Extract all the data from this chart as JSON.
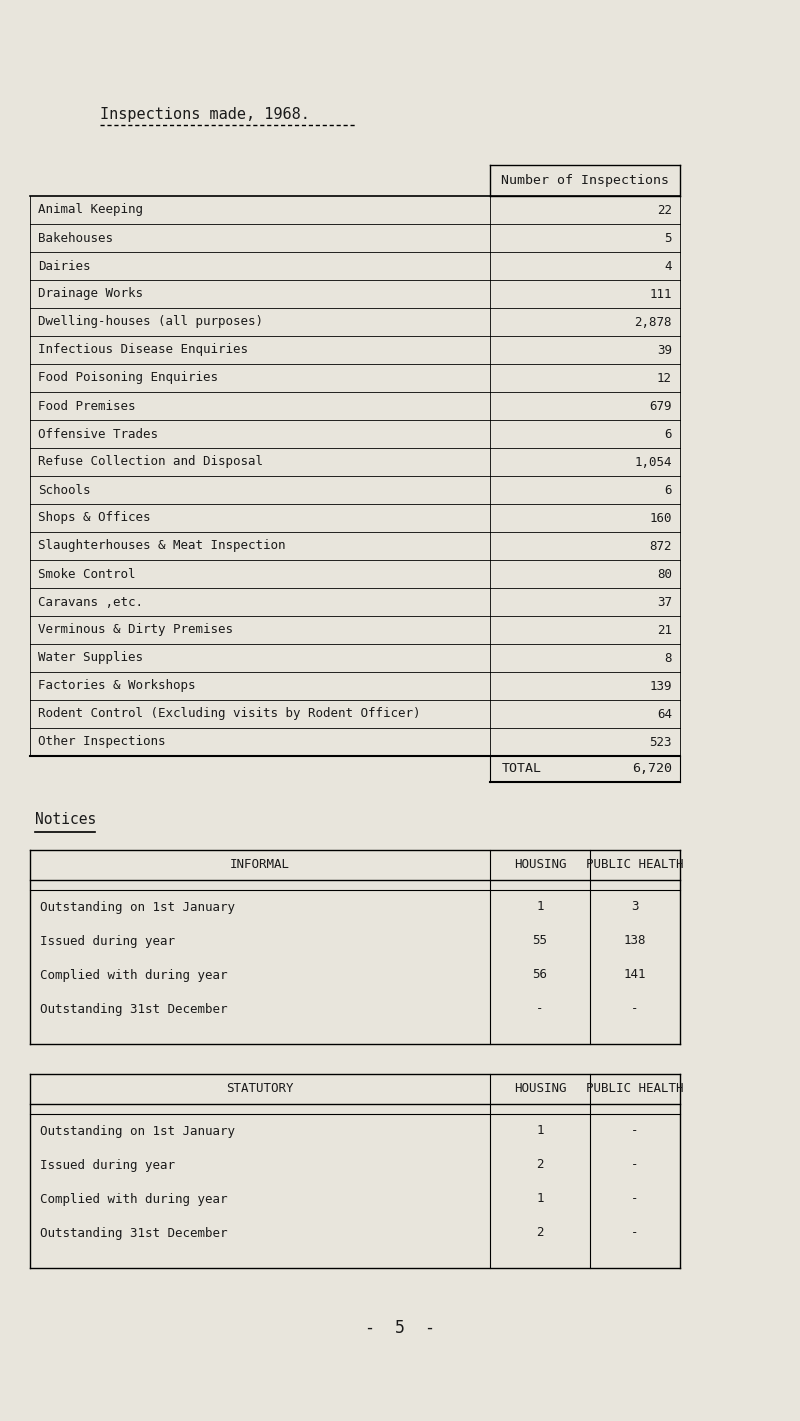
{
  "title": "Inspections made, 1968.",
  "bg_color": "#e8e5dc",
  "text_color": "#1a1a1a",
  "inspections": [
    [
      "Animal Keeping",
      "22"
    ],
    [
      "Bakehouses",
      "5"
    ],
    [
      "Dairies",
      "4"
    ],
    [
      "Drainage Works",
      "111"
    ],
    [
      "Dwelling-houses (all purposes)",
      "2,878"
    ],
    [
      "Infectious Disease Enquiries",
      "39"
    ],
    [
      "Food Poisoning Enquiries",
      "12"
    ],
    [
      "Food Premises",
      "679"
    ],
    [
      "Offensive Trades",
      "6"
    ],
    [
      "Refuse Collection and Disposal",
      "1,054"
    ],
    [
      "Schools",
      "6"
    ],
    [
      "Shops & Offices",
      "160"
    ],
    [
      "Slaughterhouses & Meat Inspection",
      "872"
    ],
    [
      "Smoke Control",
      "80"
    ],
    [
      "Caravans ,etc.",
      "37"
    ],
    [
      "Verminous & Dirty Premises",
      "21"
    ],
    [
      "Water Supplies",
      "8"
    ],
    [
      "Factories & Workshops",
      "139"
    ],
    [
      "Rodent Control (Excluding visits by Rodent Officer)",
      "64"
    ],
    [
      "Other Inspections",
      "523"
    ]
  ],
  "total_label": "TOTAL",
  "total_value": "6,720",
  "col_header": "Number of Inspections",
  "notices_label": "Notices",
  "informal_header": [
    "INFORMAL",
    "HOUSING",
    "PUBLIC HEALTH"
  ],
  "informal_rows": [
    [
      "Outstanding on 1st January",
      "1",
      "3"
    ],
    [
      "Issued during year",
      "55",
      "138"
    ],
    [
      "Complied with during year",
      "56",
      "141"
    ],
    [
      "Outstanding 31st December",
      "-",
      "-"
    ]
  ],
  "statutory_header": [
    "STATUTORY",
    "HOUSING",
    "PUBLIC HEALTH"
  ],
  "statutory_rows": [
    [
      "Outstanding on 1st January",
      "1",
      "-"
    ],
    [
      "Issued during year",
      "2",
      "-"
    ],
    [
      "Complied with during year",
      "1",
      "-"
    ],
    [
      "Outstanding 31st December",
      "2",
      "-"
    ]
  ],
  "footer": "-  5  -"
}
